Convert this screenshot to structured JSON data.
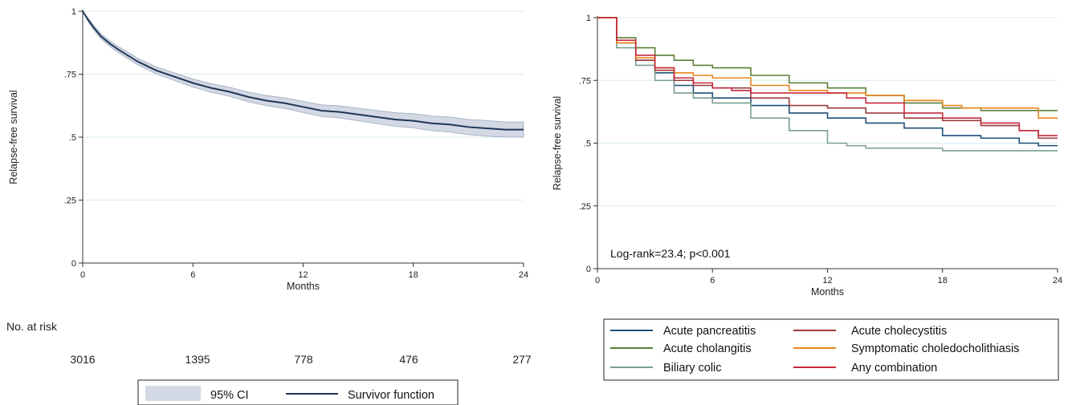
{
  "chart_data": [
    {
      "type": "line",
      "ylabel": "Relapse-free survival",
      "xlabel": "Months",
      "xlim": [
        0,
        24
      ],
      "ylim": [
        0,
        1
      ],
      "x_ticks": [
        "0",
        "6",
        "12",
        "18",
        "24"
      ],
      "y_ticks": [
        "0",
        ".25",
        ".5",
        ".75",
        "1"
      ],
      "grid": true,
      "series": [
        {
          "name": "Survivor function",
          "color": "#1f3656",
          "x": [
            0,
            0.3,
            0.6,
            1,
            1.5,
            2,
            3,
            4,
            5,
            6,
            7,
            8,
            9,
            10,
            11,
            12,
            13,
            14,
            15,
            16,
            17,
            18,
            19,
            20,
            21,
            22,
            23,
            24
          ],
          "y": [
            1,
            0.965,
            0.935,
            0.9,
            0.87,
            0.845,
            0.8,
            0.765,
            0.74,
            0.715,
            0.695,
            0.68,
            0.66,
            0.645,
            0.635,
            0.62,
            0.605,
            0.6,
            0.59,
            0.58,
            0.57,
            0.565,
            0.555,
            0.55,
            0.54,
            0.535,
            0.53,
            0.53
          ],
          "ci_lower": [
            1,
            0.958,
            0.926,
            0.89,
            0.859,
            0.833,
            0.787,
            0.751,
            0.725,
            0.699,
            0.678,
            0.662,
            0.641,
            0.625,
            0.614,
            0.598,
            0.582,
            0.576,
            0.565,
            0.554,
            0.543,
            0.537,
            0.526,
            0.52,
            0.51,
            0.504,
            0.5,
            0.5
          ],
          "ci_upper": [
            1,
            0.972,
            0.944,
            0.91,
            0.881,
            0.857,
            0.813,
            0.779,
            0.755,
            0.731,
            0.712,
            0.698,
            0.679,
            0.665,
            0.656,
            0.642,
            0.628,
            0.624,
            0.615,
            0.606,
            0.597,
            0.593,
            0.584,
            0.58,
            0.57,
            0.566,
            0.56,
            0.56
          ]
        }
      ],
      "risk_table": {
        "label": "No. at risk",
        "values": [
          "3016",
          "1395",
          "778",
          "476",
          "277"
        ]
      },
      "legend": {
        "placement": "bottom",
        "ci_label": "95% CI",
        "ci_color": "#d3d9e4",
        "line_label": "Survivor function"
      }
    },
    {
      "type": "line",
      "ylabel": "Relapse-free survival",
      "xlabel": "Months",
      "xlim": [
        0,
        24
      ],
      "ylim": [
        0,
        1
      ],
      "x_ticks": [
        "0",
        "6",
        "12",
        "18",
        "24"
      ],
      "y_ticks": [
        "0",
        ".25",
        ".5",
        ".75",
        "1"
      ],
      "grid": true,
      "annotation": "Log-rank=23.4; p<0.001",
      "legend_placement": "bottom",
      "series": [
        {
          "name": "Acute pancreatitis",
          "color": "#1f4e79",
          "x": [
            0,
            1,
            2,
            3,
            4,
            5,
            6,
            8,
            10,
            12,
            14,
            16,
            18,
            20,
            22,
            23,
            24
          ],
          "y": [
            1,
            0.9,
            0.83,
            0.78,
            0.73,
            0.7,
            0.68,
            0.65,
            0.62,
            0.6,
            0.58,
            0.56,
            0.53,
            0.52,
            0.5,
            0.49,
            0.49
          ]
        },
        {
          "name": "Acute cholangitis",
          "color": "#5b7f35",
          "x": [
            0,
            1,
            2,
            3,
            4,
            5,
            6,
            8,
            10,
            12,
            14,
            16,
            18,
            20,
            22,
            24
          ],
          "y": [
            1,
            0.92,
            0.88,
            0.85,
            0.83,
            0.81,
            0.8,
            0.77,
            0.74,
            0.72,
            0.69,
            0.66,
            0.64,
            0.63,
            0.63,
            0.63
          ]
        },
        {
          "name": "Biliary colic",
          "color": "#7a9e91",
          "x": [
            0,
            1,
            2,
            3,
            4,
            5,
            6,
            8,
            10,
            12,
            13,
            14,
            16,
            18,
            20,
            22,
            24
          ],
          "y": [
            1,
            0.88,
            0.81,
            0.75,
            0.7,
            0.68,
            0.66,
            0.6,
            0.55,
            0.5,
            0.49,
            0.48,
            0.48,
            0.47,
            0.47,
            0.47,
            0.47
          ]
        },
        {
          "name": "Acute cholecystitis",
          "color": "#9e3b3b",
          "x": [
            0,
            1,
            2,
            3,
            4,
            5,
            6,
            8,
            10,
            12,
            14,
            16,
            18,
            20,
            22,
            23,
            24
          ],
          "y": [
            1,
            0.9,
            0.83,
            0.79,
            0.75,
            0.73,
            0.72,
            0.68,
            0.65,
            0.64,
            0.62,
            0.6,
            0.59,
            0.57,
            0.55,
            0.52,
            0.52
          ]
        },
        {
          "name": "Symptomatic choledocholithiasis",
          "color": "#e8861a",
          "x": [
            0,
            1,
            2,
            3,
            4,
            5,
            6,
            8,
            10,
            12,
            14,
            16,
            18,
            19,
            20,
            22,
            23,
            24
          ],
          "y": [
            1,
            0.9,
            0.84,
            0.8,
            0.78,
            0.77,
            0.76,
            0.73,
            0.71,
            0.7,
            0.69,
            0.67,
            0.65,
            0.64,
            0.64,
            0.64,
            0.6,
            0.6
          ]
        },
        {
          "name": "Any combination",
          "color": "#c8283c",
          "x": [
            0,
            1,
            2,
            3,
            4,
            5,
            6,
            7,
            8,
            10,
            12,
            13,
            14,
            16,
            18,
            20,
            22,
            23,
            24
          ],
          "y": [
            1,
            0.91,
            0.85,
            0.8,
            0.76,
            0.74,
            0.72,
            0.71,
            0.7,
            0.7,
            0.7,
            0.68,
            0.66,
            0.62,
            0.6,
            0.58,
            0.55,
            0.53,
            0.53
          ]
        }
      ]
    }
  ]
}
